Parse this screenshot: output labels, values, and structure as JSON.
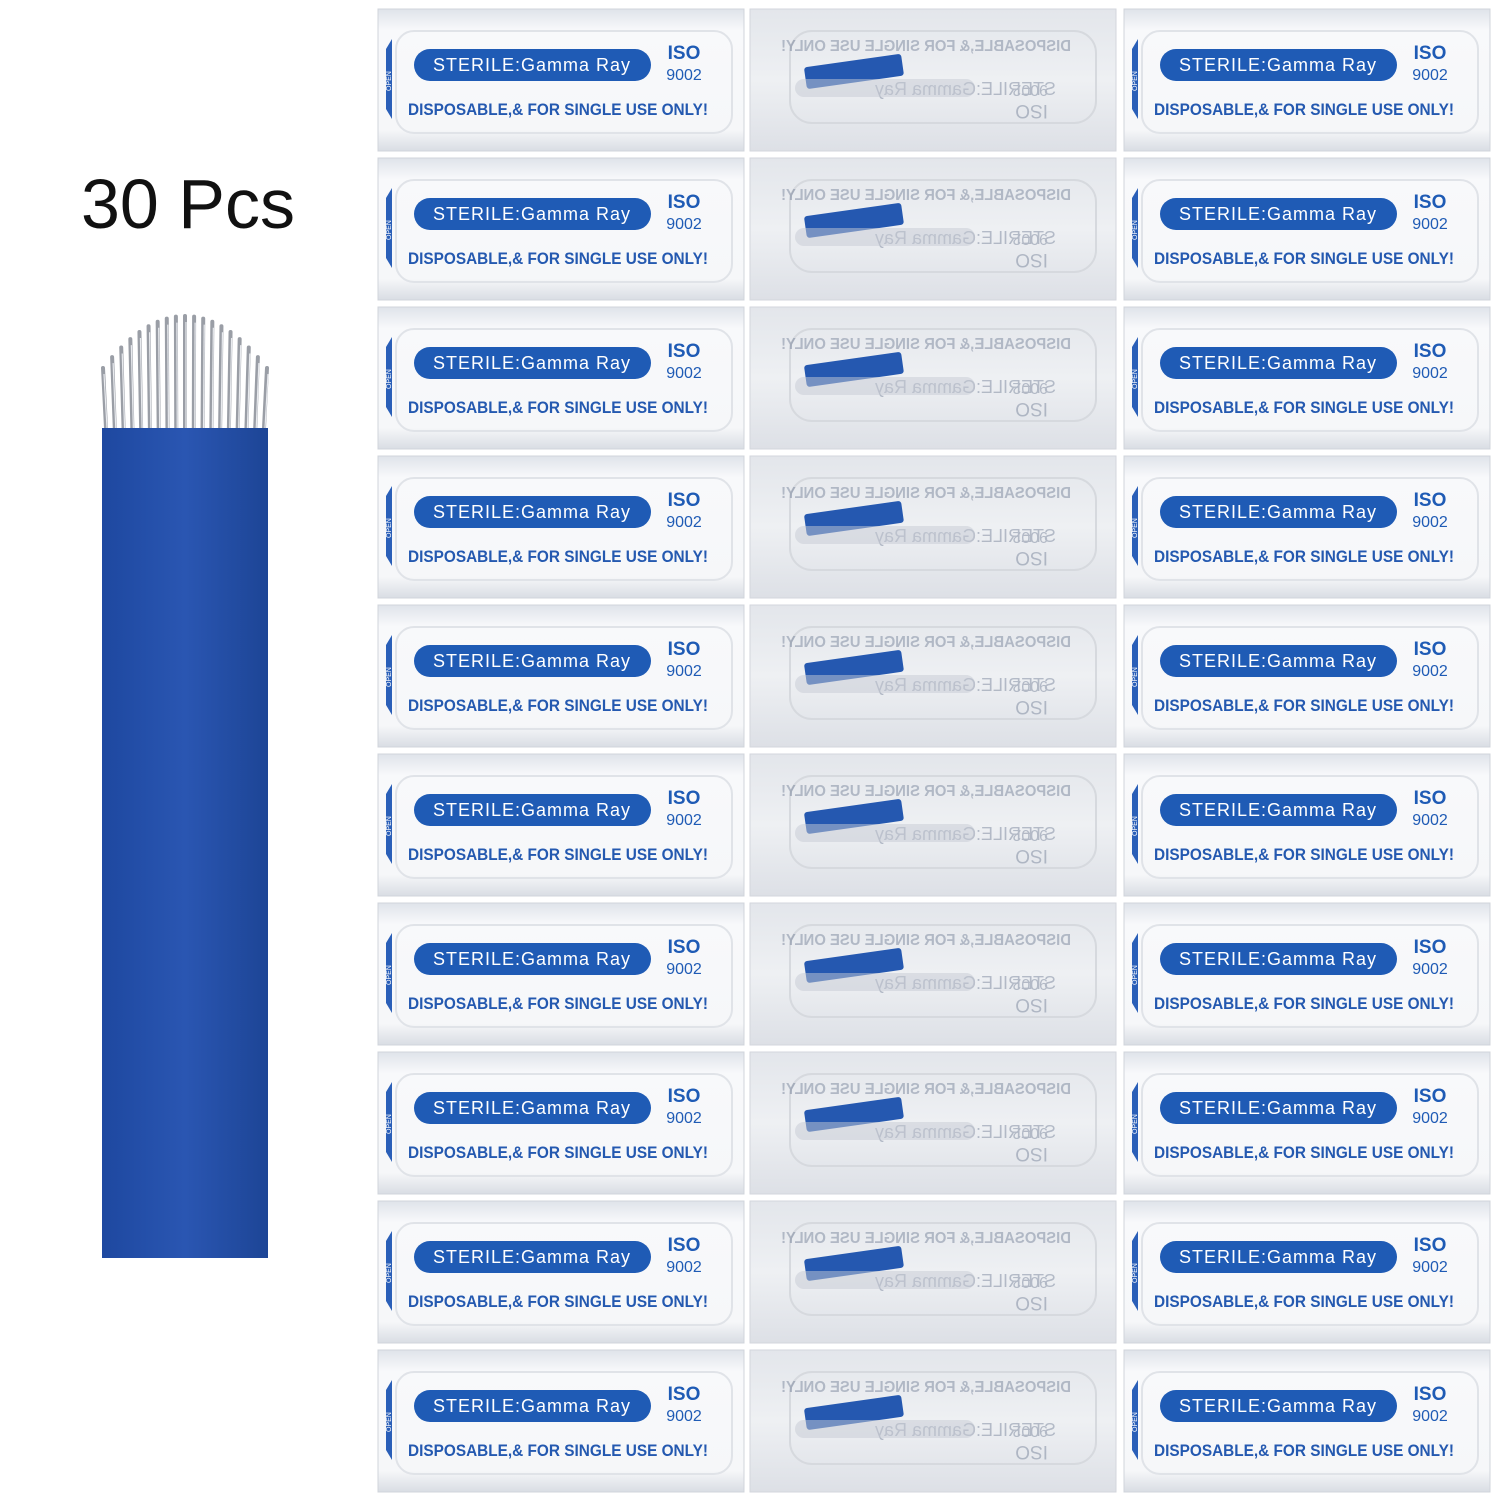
{
  "header": {
    "title": "30 Pcs"
  },
  "packet": {
    "sterile": "STERILE:Gamma Ray",
    "iso": "ISO",
    "iso_number": "9002",
    "notice": "DISPOSABLE,& FOR SINGLE USE ONLY!",
    "open": "OPEN"
  }
}
